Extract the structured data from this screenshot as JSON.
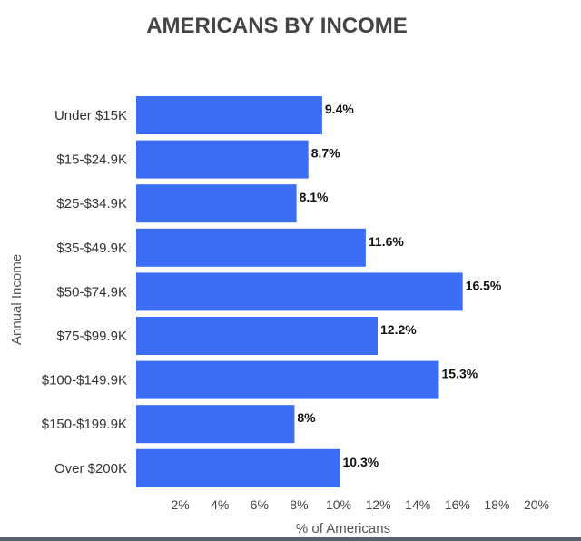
{
  "chart_data": {
    "type": "bar",
    "orientation": "horizontal",
    "title": "AMERICANS BY INCOME",
    "xlabel": "% of Americans",
    "ylabel": "Annual Income",
    "categories": [
      "Under $15K",
      "$15-$24.9K",
      "$25-$34.9K",
      "$35-$49.9K",
      "$50-$74.9K",
      "$75-$99.9K",
      "$100-$149.9K",
      "$150-$199.9K",
      "Over $200K"
    ],
    "values": [
      9.4,
      8.7,
      8.1,
      11.6,
      16.5,
      12.2,
      15.3,
      8,
      10.3
    ],
    "value_labels": [
      "9.4%",
      "8.7%",
      "8.1%",
      "11.6%",
      "16.5%",
      "12.2%",
      "15.3%",
      "8%",
      "10.3%"
    ],
    "xticks": [
      2,
      4,
      6,
      8,
      10,
      12,
      14,
      16,
      18,
      20
    ],
    "xtick_labels": [
      "2%",
      "4%",
      "6%",
      "8%",
      "10%",
      "12%",
      "14%",
      "16%",
      "18%",
      "20%"
    ],
    "xlim": [
      0,
      20
    ],
    "grid": false,
    "legend": "none",
    "bar_color": "#3b6ef5"
  }
}
